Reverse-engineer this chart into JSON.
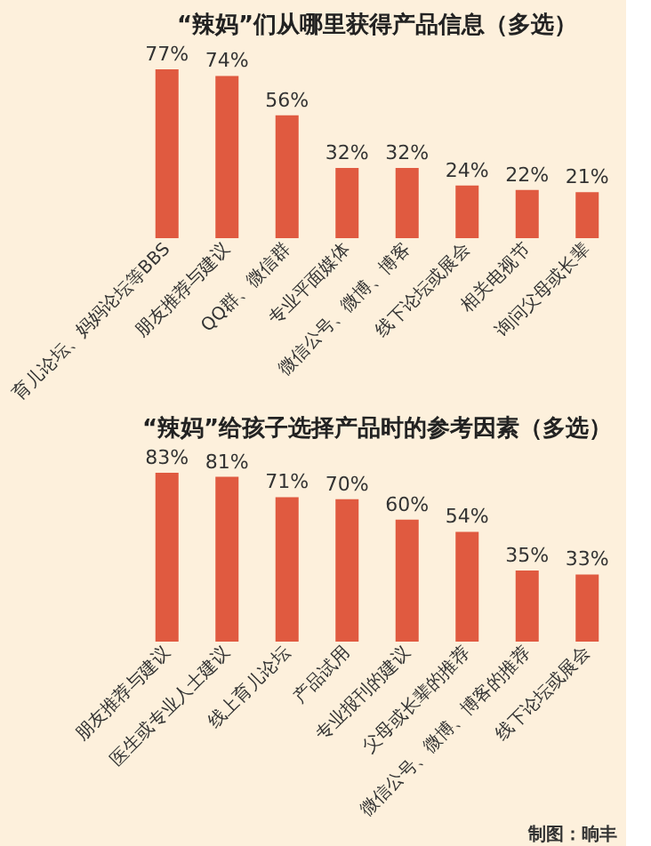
{
  "chart_data": [
    {
      "type": "bar",
      "title": "“辣妈”们从哪里获得产品信息（多选）",
      "categories": [
        "育儿论坛、妈妈论坛等BBS",
        "朋友推荐与建议",
        "QQ群、微信群",
        "专业平面媒体",
        "微信公号、微博、博客",
        "线下论坛或展会",
        "相关电视节",
        "询问父母或长辈"
      ],
      "values": [
        77,
        74,
        56,
        32,
        32,
        24,
        22,
        21
      ],
      "value_labels": [
        "77%",
        "74%",
        "56%",
        "32%",
        "32%",
        "24%",
        "22%",
        "21%"
      ],
      "color": "#e05a40"
    },
    {
      "type": "bar",
      "title": "“辣妈”给孩子选择产品时的参考因素（多选）",
      "categories": [
        "朋友推荐与建议",
        "医生或专业人士建议",
        "线上育儿论坛",
        "产品试用",
        "专业报刊的建议",
        "父母或长辈的推荐",
        "微信公号、微博、博客的推荐",
        "线下论坛或展会"
      ],
      "values": [
        83,
        81,
        71,
        70,
        60,
        54,
        35,
        33
      ],
      "value_labels": [
        "83%",
        "81%",
        "71%",
        "70%",
        "60%",
        "54%",
        "35%",
        "33%"
      ],
      "color": "#e05a40",
      "annotations": [
        "制图：晌丰"
      ]
    }
  ]
}
